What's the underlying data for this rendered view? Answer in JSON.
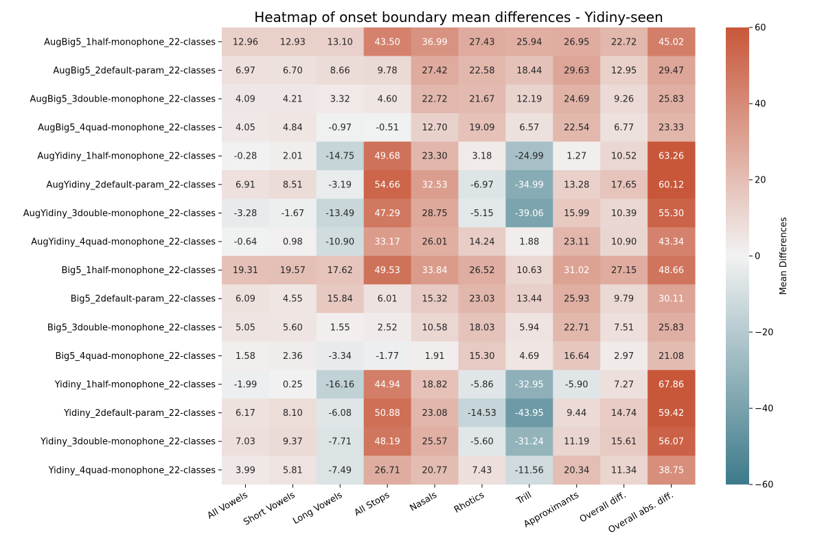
{
  "chart_data": {
    "type": "heatmap",
    "title": "Heatmap of onset boundary mean differences - Yidiny-seen",
    "rows": [
      "AugBig5_1half-monophone_22-classes",
      "AugBig5_2default-param_22-classes",
      "AugBig5_3double-monophone_22-classes",
      "AugBig5_4quad-monophone_22-classes",
      "AugYidiny_1half-monophone_22-classes",
      "AugYidiny_2default-param_22-classes",
      "AugYidiny_3double-monophone_22-classes",
      "AugYidiny_4quad-monophone_22-classes",
      "Big5_1half-monophone_22-classes",
      "Big5_2default-param_22-classes",
      "Big5_3double-monophone_22-classes",
      "Big5_4quad-monophone_22-classes",
      "Yidiny_1half-monophone_22-classes",
      "Yidiny_2default-param_22-classes",
      "Yidiny_3double-monophone_22-classes",
      "Yidiny_4quad-monophone_22-classes"
    ],
    "columns": [
      "All Vowels",
      "Short Vowels",
      "Long Vowels",
      "All Stops",
      "Nasals",
      "Rhotics",
      "Trill",
      "Approximants",
      "Overall diff.",
      "Overall abs. diff."
    ],
    "values": [
      [
        "12.96",
        "12.93",
        "13.10",
        "43.50",
        "36.99",
        "27.43",
        "25.94",
        "26.95",
        "22.72",
        "45.02"
      ],
      [
        "6.97",
        "6.70",
        "8.66",
        "9.78",
        "27.42",
        "22.58",
        "18.44",
        "29.63",
        "12.95",
        "29.47"
      ],
      [
        "4.09",
        "4.21",
        "3.32",
        "4.60",
        "22.72",
        "21.67",
        "12.19",
        "24.69",
        "9.26",
        "25.83"
      ],
      [
        "4.05",
        "4.84",
        "-0.97",
        "-0.51",
        "12.70",
        "19.09",
        "6.57",
        "22.54",
        "6.77",
        "23.33"
      ],
      [
        "-0.28",
        "2.01",
        "-14.75",
        "49.68",
        "23.30",
        "3.18",
        "-24.99",
        "1.27",
        "10.52",
        "63.26"
      ],
      [
        "6.91",
        "8.51",
        "-3.19",
        "54.66",
        "32.53",
        "-6.97",
        "-34.99",
        "13.28",
        "17.65",
        "60.12"
      ],
      [
        "-3.28",
        "-1.67",
        "-13.49",
        "47.29",
        "28.75",
        "-5.15",
        "-39.06",
        "15.99",
        "10.39",
        "55.30"
      ],
      [
        "-0.64",
        "0.98",
        "-10.90",
        "33.17",
        "26.01",
        "14.24",
        "1.88",
        "23.11",
        "10.90",
        "43.34"
      ],
      [
        "19.31",
        "19.57",
        "17.62",
        "49.53",
        "33.84",
        "26.52",
        "10.63",
        "31.02",
        "27.15",
        "48.66"
      ],
      [
        "6.09",
        "4.55",
        "15.84",
        "6.01",
        "15.32",
        "23.03",
        "13.44",
        "25.93",
        "9.79",
        "30.11"
      ],
      [
        "5.05",
        "5.60",
        "1.55",
        "2.52",
        "10.58",
        "18.03",
        "5.94",
        "22.71",
        "7.51",
        "25.83"
      ],
      [
        "1.58",
        "2.36",
        "-3.34",
        "-1.77",
        "1.91",
        "15.30",
        "4.69",
        "16.64",
        "2.97",
        "21.08"
      ],
      [
        "-1.99",
        "0.25",
        "-16.16",
        "44.94",
        "18.82",
        "-5.86",
        "-32.95",
        "-5.90",
        "7.27",
        "67.86"
      ],
      [
        "6.17",
        "8.10",
        "-6.08",
        "50.88",
        "23.08",
        "-14.53",
        "-43.95",
        "9.44",
        "14.74",
        "59.42"
      ],
      [
        "7.03",
        "9.37",
        "-7.71",
        "48.19",
        "25.57",
        "-5.60",
        "-31.24",
        "11.19",
        "15.61",
        "56.07"
      ],
      [
        "3.99",
        "5.81",
        "-7.49",
        "26.71",
        "20.77",
        "7.43",
        "-11.56",
        "20.34",
        "11.34",
        "38.75"
      ]
    ],
    "colorbar": {
      "label": "Mean Differences",
      "range": [
        -60,
        60
      ],
      "ticks": [
        "60",
        "40",
        "20",
        "0",
        "−20",
        "−40",
        "−60"
      ],
      "low_color": "#3d7a8a",
      "mid_color": "#f2f2f2",
      "high_color": "#c8573a"
    }
  }
}
